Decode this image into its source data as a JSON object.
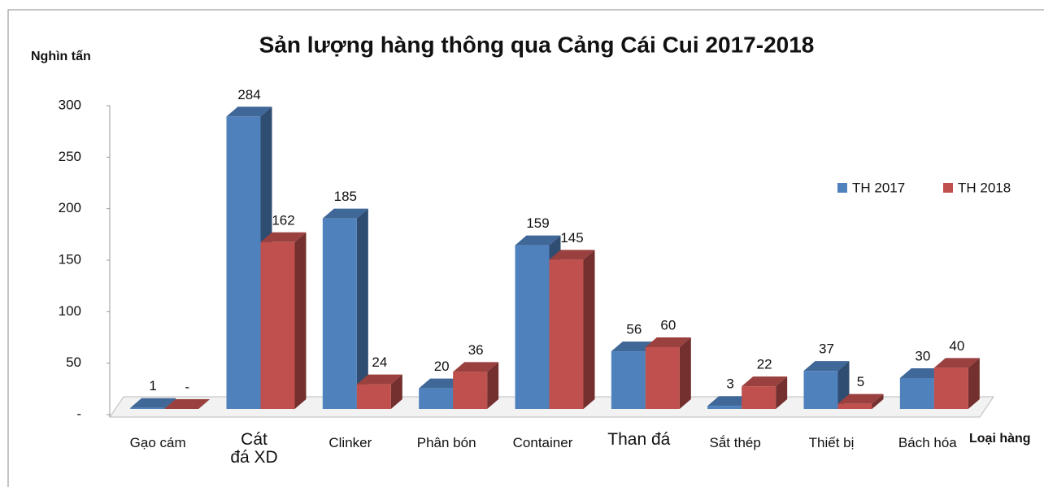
{
  "chart_data": {
    "type": "bar3d",
    "title": "Sản lượng hàng thông qua Cảng Cái Cui 2017-2018",
    "y_label": "Nghìn tấn",
    "x_label": "Loại hàng",
    "categories": [
      "Gạo cám",
      "Cát đá XD",
      "Clinker",
      "Phân bón",
      "Container",
      "Than đá",
      "Sắt thép",
      "Thiết bị",
      "Bách hóa"
    ],
    "series": [
      {
        "name": "TH 2017",
        "color": "#4f81bd",
        "values": [
          1,
          284,
          185,
          20,
          159,
          56,
          3,
          37,
          30
        ]
      },
      {
        "name": "TH 2018",
        "color": "#c0504d",
        "values": [
          0,
          162,
          24,
          36,
          145,
          60,
          22,
          5,
          40
        ],
        "value_labels": [
          "-",
          "162",
          "24",
          "36",
          "145",
          "60",
          "22",
          "5",
          "40"
        ]
      }
    ],
    "ylim": [
      0,
      300
    ],
    "yticks": [
      {
        "value": 0,
        "label": "-"
      },
      50,
      100,
      150,
      200,
      250,
      300
    ],
    "legend": "right"
  }
}
